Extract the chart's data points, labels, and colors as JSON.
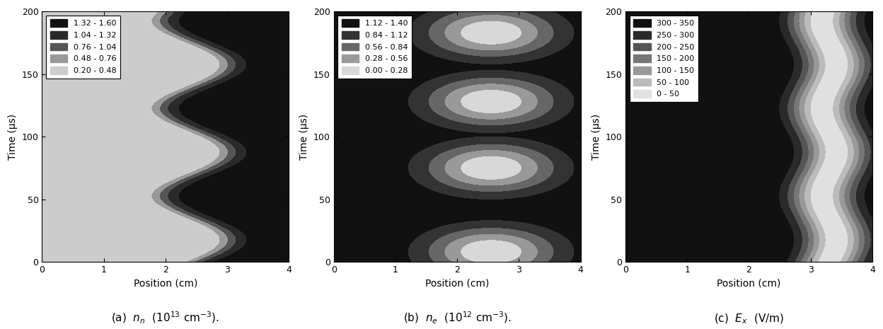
{
  "plot_a": {
    "xlabel": "Position (cm)",
    "ylabel": "Time (μs)",
    "xlim": [
      0,
      4
    ],
    "ylim": [
      0,
      200
    ],
    "levels": [
      0.2,
      0.48,
      0.76,
      1.04,
      1.32,
      1.6
    ],
    "legend_labels": [
      "1.32 - 1.60",
      "1.04 - 1.32",
      "0.76 - 1.04",
      "0.48 - 0.76",
      "0.20 - 0.48"
    ],
    "colors": [
      "#111111",
      "#2a2a2a",
      "#555555",
      "#999999",
      "#cccccc"
    ]
  },
  "plot_b": {
    "xlabel": "Position (cm)",
    "ylabel": "Time (μs)",
    "xlim": [
      0,
      4
    ],
    "ylim": [
      0,
      200
    ],
    "levels": [
      0.0,
      0.28,
      0.56,
      0.84,
      1.12,
      1.4
    ],
    "legend_labels": [
      "1.12 - 1.40",
      "0.84 - 1.12",
      "0.56 - 0.84",
      "0.28 - 0.56",
      "0.00 - 0.28"
    ],
    "colors": [
      "#111111",
      "#333333",
      "#666666",
      "#999999",
      "#d8d8d8"
    ]
  },
  "plot_c": {
    "xlabel": "Position (cm)",
    "ylabel": "Time (μs)",
    "xlim": [
      0,
      4
    ],
    "ylim": [
      0,
      200
    ],
    "levels": [
      0,
      50,
      100,
      150,
      200,
      250,
      300,
      350
    ],
    "legend_labels": [
      "300 - 350",
      "250 - 300",
      "200 - 250",
      "150 - 200",
      "100 - 150",
      "50 - 100",
      "0 - 50"
    ],
    "colors": [
      "#111111",
      "#2a2a2a",
      "#555555",
      "#777777",
      "#999999",
      "#bbbbbb",
      "#e0e0e0"
    ]
  },
  "xticks": [
    0,
    1,
    2,
    3,
    4
  ],
  "yticks": [
    0,
    50,
    100,
    150,
    200
  ],
  "nx": 300,
  "nt": 300,
  "period_us": 70.0
}
